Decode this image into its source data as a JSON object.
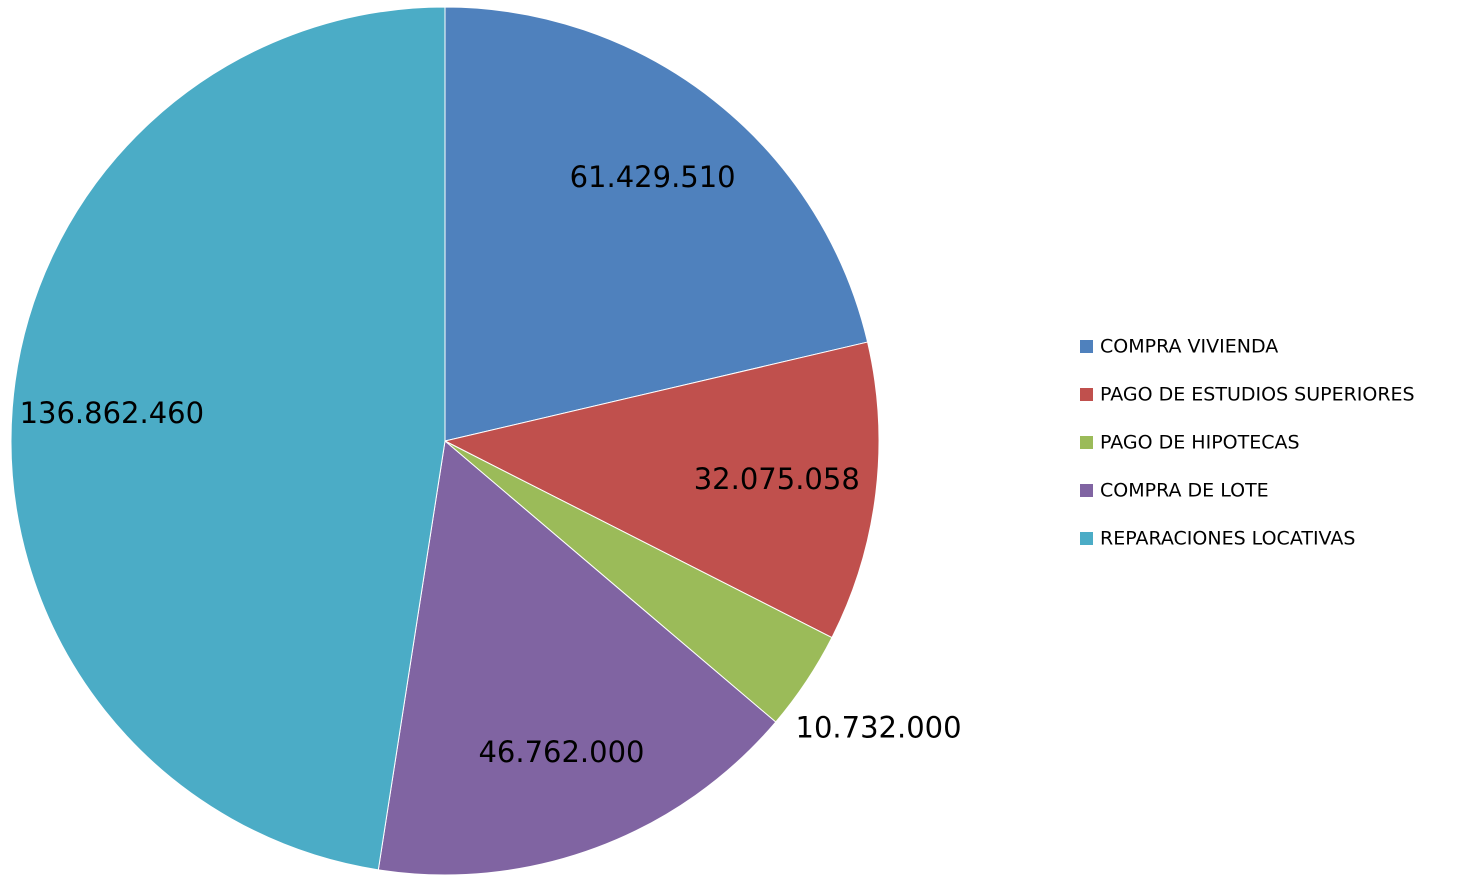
{
  "chart_data": {
    "type": "pie",
    "categories": [
      "COMPRA VIVIENDA",
      "PAGO DE ESTUDIOS SUPERIORES",
      "PAGO DE HIPOTECAS",
      "COMPRA DE LOTE",
      "REPARACIONES LOCATIVAS"
    ],
    "values": [
      61429510,
      32075058,
      10732000,
      46762000,
      136862460
    ],
    "value_labels": [
      "61.429.510",
      "32.075.058",
      "10.732.000",
      "46.762.000",
      "136.862.460"
    ],
    "colors": [
      "#4f81bd",
      "#c0504d",
      "#9bbb59",
      "#8064a2",
      "#4bacc6"
    ],
    "legend": "right"
  }
}
